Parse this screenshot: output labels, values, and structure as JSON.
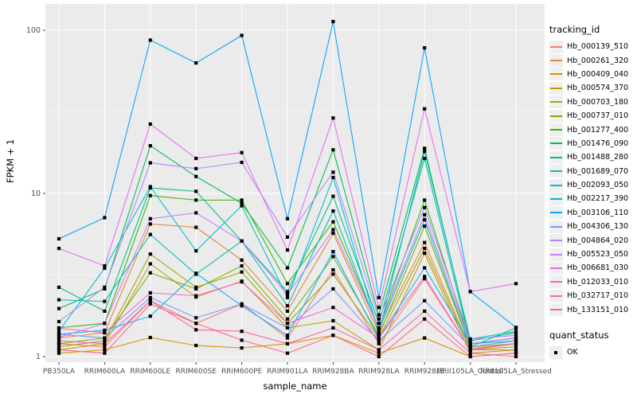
{
  "figure": {
    "y_axis_title": "FPKM + 1",
    "x_axis_title": "sample_name",
    "legend_tracking_title": "tracking_id",
    "legend_quant_title": "quant_status",
    "legend_quant_ok": "OK",
    "panel_color": "#EBEBEB",
    "gridline_color": "#FFFFFF",
    "point_color": "#000000",
    "tick_label_color": "#4D4D4D"
  },
  "chart_data": {
    "type": "line",
    "title": "",
    "xlabel": "sample_name",
    "ylabel": "FPKM + 1",
    "y_scale": "log10",
    "ylim": [
      1,
      130
    ],
    "y_major_ticks": [
      100,
      10,
      1
    ],
    "y_tick_labels": [
      "100",
      "10",
      "1"
    ],
    "y_minor_gridlines": [
      31.62,
      3.162
    ],
    "legend_position": "right",
    "grid": true,
    "point_shape": "square",
    "quant_status_label": "OK",
    "categories": [
      "PB350LA",
      "RRIM600LA",
      "RRIM600LE",
      "RRIM600SE",
      "RRIM600PE",
      "RRIM901LA",
      "RRIM928BA",
      "RRIM928LA",
      "RRIM928LE",
      "RRII105LA_Control",
      "RRII105LA_Stressed"
    ],
    "series": [
      {
        "name": "Hb_000139_510",
        "color": "#F8766D",
        "values": [
          1.2,
          1.15,
          2.2,
          1.6,
          2.1,
          1.3,
          3.4,
          1.2,
          3.0,
          1.1,
          1.1
        ]
      },
      {
        "name": "Hb_000261_320",
        "color": "#EA8331",
        "values": [
          1.3,
          1.4,
          6.5,
          6.2,
          3.9,
          1.9,
          5.7,
          1.4,
          5.0,
          1.12,
          1.2
        ]
      },
      {
        "name": "Hb_000409_040",
        "color": "#D89000",
        "values": [
          1.05,
          1.1,
          1.31,
          1.17,
          1.13,
          1.2,
          1.35,
          1.05,
          1.3,
          1.0,
          1.05
        ]
      },
      {
        "name": "Hb_000574_370",
        "color": "#C09B00",
        "values": [
          1.1,
          1.2,
          3.7,
          2.32,
          2.9,
          1.5,
          1.66,
          1.1,
          4.3,
          1.05,
          1.1
        ]
      },
      {
        "name": "Hb_000703_180",
        "color": "#A3A500",
        "values": [
          1.15,
          1.25,
          4.25,
          2.66,
          3.3,
          1.6,
          3.2,
          1.3,
          4.6,
          1.1,
          1.15
        ]
      },
      {
        "name": "Hb_000737_010",
        "color": "#7CAE00",
        "values": [
          1.2,
          1.3,
          3.26,
          2.6,
          3.6,
          1.7,
          4.1,
          1.35,
          6.3,
          1.15,
          1.2
        ]
      },
      {
        "name": "Hb_001277_400",
        "color": "#39B600",
        "values": [
          1.5,
          1.6,
          9.7,
          9.1,
          9.1,
          2.8,
          6.7,
          1.5,
          9.1,
          1.2,
          1.3
        ]
      },
      {
        "name": "Hb_001476_090",
        "color": "#00BB4E",
        "values": [
          1.97,
          2.6,
          19.6,
          12.7,
          8.7,
          3.5,
          18.5,
          1.8,
          18.9,
          1.25,
          1.4
        ]
      },
      {
        "name": "Hb_001488_280",
        "color": "#00C087",
        "values": [
          2.66,
          1.9,
          10.8,
          10.3,
          5.1,
          2.5,
          9.6,
          1.6,
          16.4,
          1.2,
          1.3
        ]
      },
      {
        "name": "Hb_001689_070",
        "color": "#00C0B2",
        "values": [
          2.23,
          2.18,
          5.6,
          3.2,
          5.1,
          2.05,
          7.8,
          1.45,
          6.9,
          1.15,
          1.5
        ]
      },
      {
        "name": "Hb_002093_050",
        "color": "#00BDD0",
        "values": [
          1.43,
          3.48,
          11.0,
          4.45,
          8.4,
          2.3,
          12.5,
          1.4,
          18.1,
          1.28,
          1.43
        ]
      },
      {
        "name": "Hb_002217_390",
        "color": "#00B4EF",
        "values": [
          1.37,
          1.45,
          1.77,
          3.24,
          2.05,
          1.35,
          4.4,
          1.3,
          3.5,
          1.2,
          1.25
        ]
      },
      {
        "name": "Hb_003106_110",
        "color": "#00A5FF",
        "values": [
          5.27,
          7.1,
          87.0,
          63.0,
          93.0,
          7.0,
          113.0,
          2.3,
          78.0,
          2.5,
          1.51
        ]
      },
      {
        "name": "Hb_004306_130",
        "color": "#7997FF",
        "values": [
          1.37,
          1.3,
          2.3,
          1.73,
          2.1,
          1.5,
          2.6,
          1.25,
          2.2,
          1.15,
          1.25
        ]
      },
      {
        "name": "Hb_004864_020",
        "color": "#AC88FF",
        "values": [
          1.64,
          2.66,
          15.4,
          14.2,
          15.5,
          5.4,
          13.5,
          1.7,
          8.2,
          1.28,
          1.35
        ]
      },
      {
        "name": "Hb_005523_050",
        "color": "#C77CFF",
        "values": [
          1.31,
          1.6,
          7.0,
          7.6,
          5.1,
          2.4,
          6.0,
          1.5,
          7.4,
          1.2,
          1.3
        ]
      },
      {
        "name": "Hb_006681_030",
        "color": "#E76BF3",
        "values": [
          4.6,
          3.6,
          26.6,
          16.4,
          17.8,
          4.5,
          29.0,
          2.0,
          33.0,
          2.5,
          2.8
        ]
      },
      {
        "name": "Hb_012033_010",
        "color": "#FD61D1",
        "values": [
          1.49,
          1.4,
          2.46,
          2.36,
          2.87,
          1.6,
          2.0,
          1.3,
          3.1,
          1.1,
          1.2
        ]
      },
      {
        "name": "Hb_032717_010",
        "color": "#FF62A8",
        "values": [
          1.25,
          1.2,
          2.2,
          1.46,
          1.43,
          1.2,
          1.5,
          1.1,
          1.9,
          1.05,
          1.0
        ]
      },
      {
        "name": "Hb_133151_010",
        "color": "#FF6876",
        "values": [
          1.1,
          1.05,
          2.1,
          1.6,
          1.26,
          1.05,
          1.35,
          1.0,
          1.7,
          1.0,
          1.05
        ]
      }
    ]
  }
}
